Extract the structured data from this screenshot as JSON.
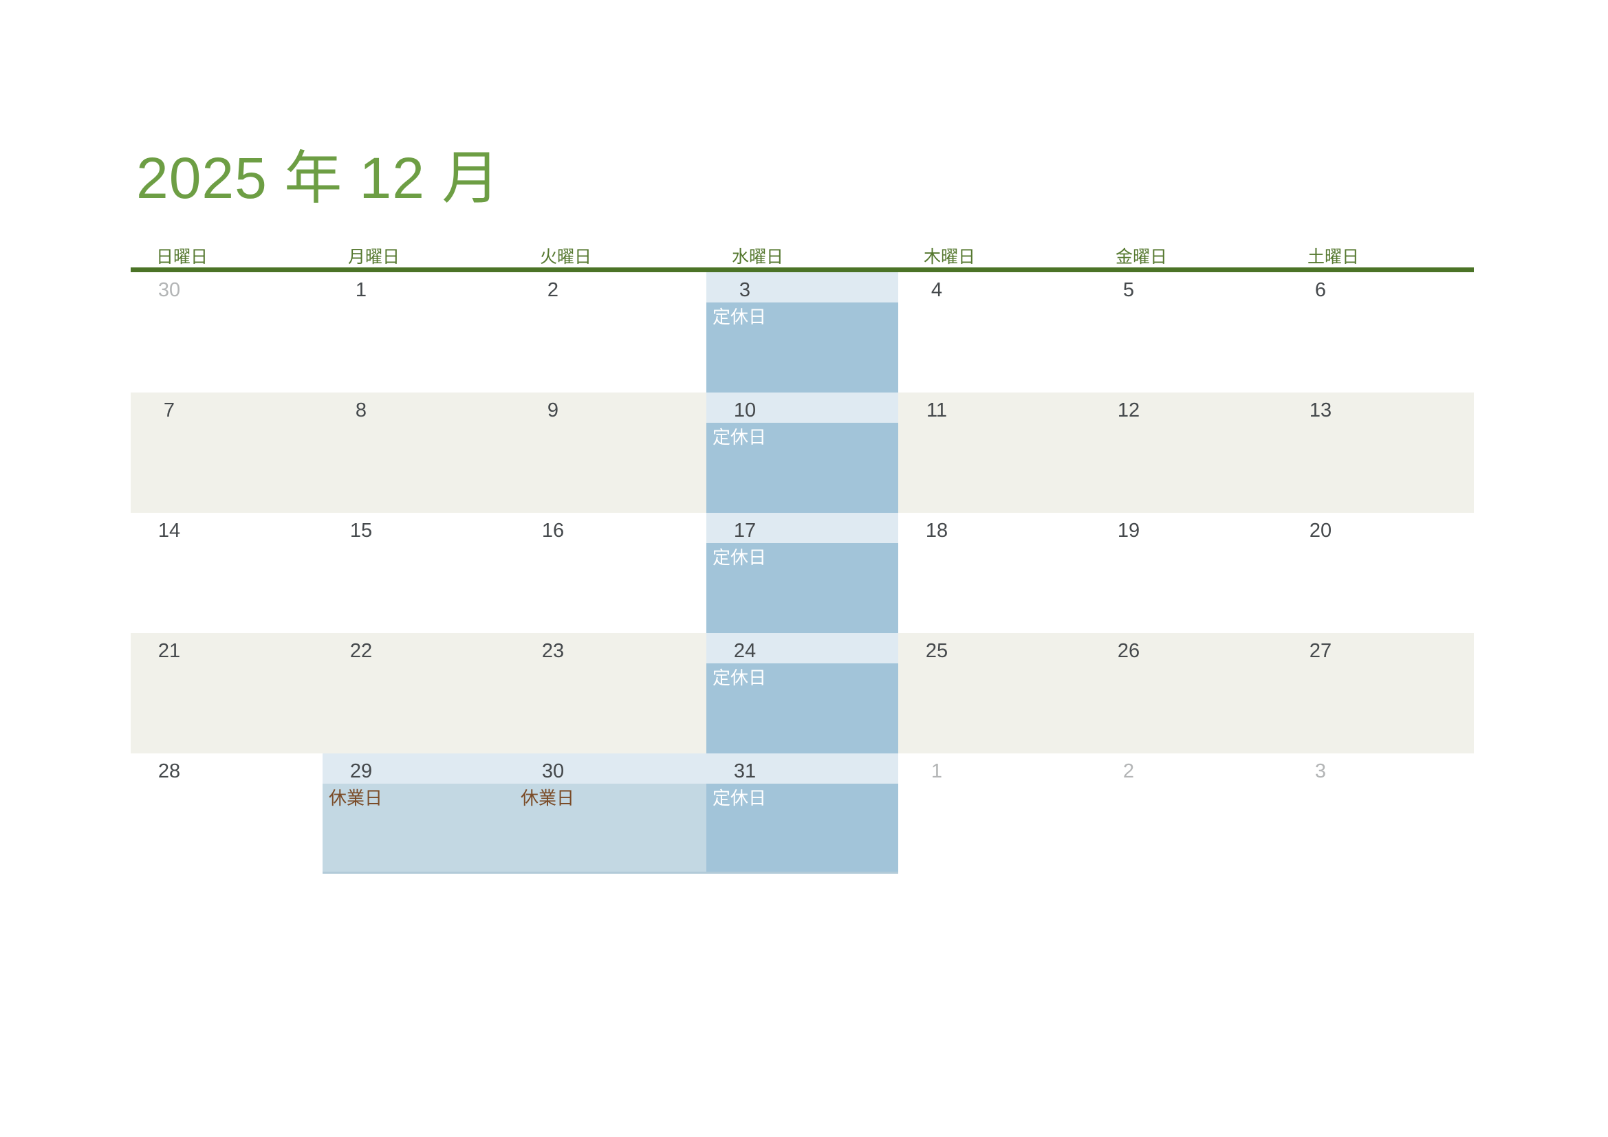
{
  "title": "2025 年 12 月",
  "weekday_headers": [
    "日曜日",
    "月曜日",
    "火曜日",
    "水曜日",
    "木曜日",
    "金曜日",
    "土曜日"
  ],
  "event_labels": {
    "closed": "定休日",
    "holiday": "休業日"
  },
  "colors": {
    "title_green": "#6d9e44",
    "weekday_green": "#55782f",
    "rule_green": "#4b7327",
    "alt_row_beige": "#f1f1ea",
    "number_band_blue": "#dfeaf2",
    "closed_event_fill": "#a2c4d9",
    "closed_event_text": "#ffffff",
    "holiday_event_fill": "#c3d8e3",
    "holiday_event_text": "#7a4b27",
    "day_number": "#45494c",
    "outside_month_number": "#b3b5b6"
  },
  "weeks": [
    {
      "days": [
        {
          "num": "30",
          "outside": true
        },
        {
          "num": "1"
        },
        {
          "num": "2"
        },
        {
          "num": "3",
          "event": "定休日",
          "event_type": "closed"
        },
        {
          "num": "4"
        },
        {
          "num": "5"
        },
        {
          "num": "6"
        }
      ]
    },
    {
      "days": [
        {
          "num": "7"
        },
        {
          "num": "8"
        },
        {
          "num": "9"
        },
        {
          "num": "10",
          "event": "定休日",
          "event_type": "closed"
        },
        {
          "num": "11"
        },
        {
          "num": "12"
        },
        {
          "num": "13"
        }
      ]
    },
    {
      "days": [
        {
          "num": "14"
        },
        {
          "num": "15"
        },
        {
          "num": "16"
        },
        {
          "num": "17",
          "event": "定休日",
          "event_type": "closed"
        },
        {
          "num": "18"
        },
        {
          "num": "19"
        },
        {
          "num": "20"
        }
      ]
    },
    {
      "days": [
        {
          "num": "21"
        },
        {
          "num": "22"
        },
        {
          "num": "23"
        },
        {
          "num": "24",
          "event": "定休日",
          "event_type": "closed"
        },
        {
          "num": "25"
        },
        {
          "num": "26"
        },
        {
          "num": "27"
        }
      ]
    },
    {
      "days": [
        {
          "num": "28"
        },
        {
          "num": "29",
          "event": "休業日",
          "event_type": "holiday"
        },
        {
          "num": "30",
          "event": "休業日",
          "event_type": "holiday"
        },
        {
          "num": "31",
          "event": "定休日",
          "event_type": "closed"
        },
        {
          "num": "1",
          "outside": true
        },
        {
          "num": "2",
          "outside": true
        },
        {
          "num": "3",
          "outside": true
        }
      ]
    }
  ]
}
